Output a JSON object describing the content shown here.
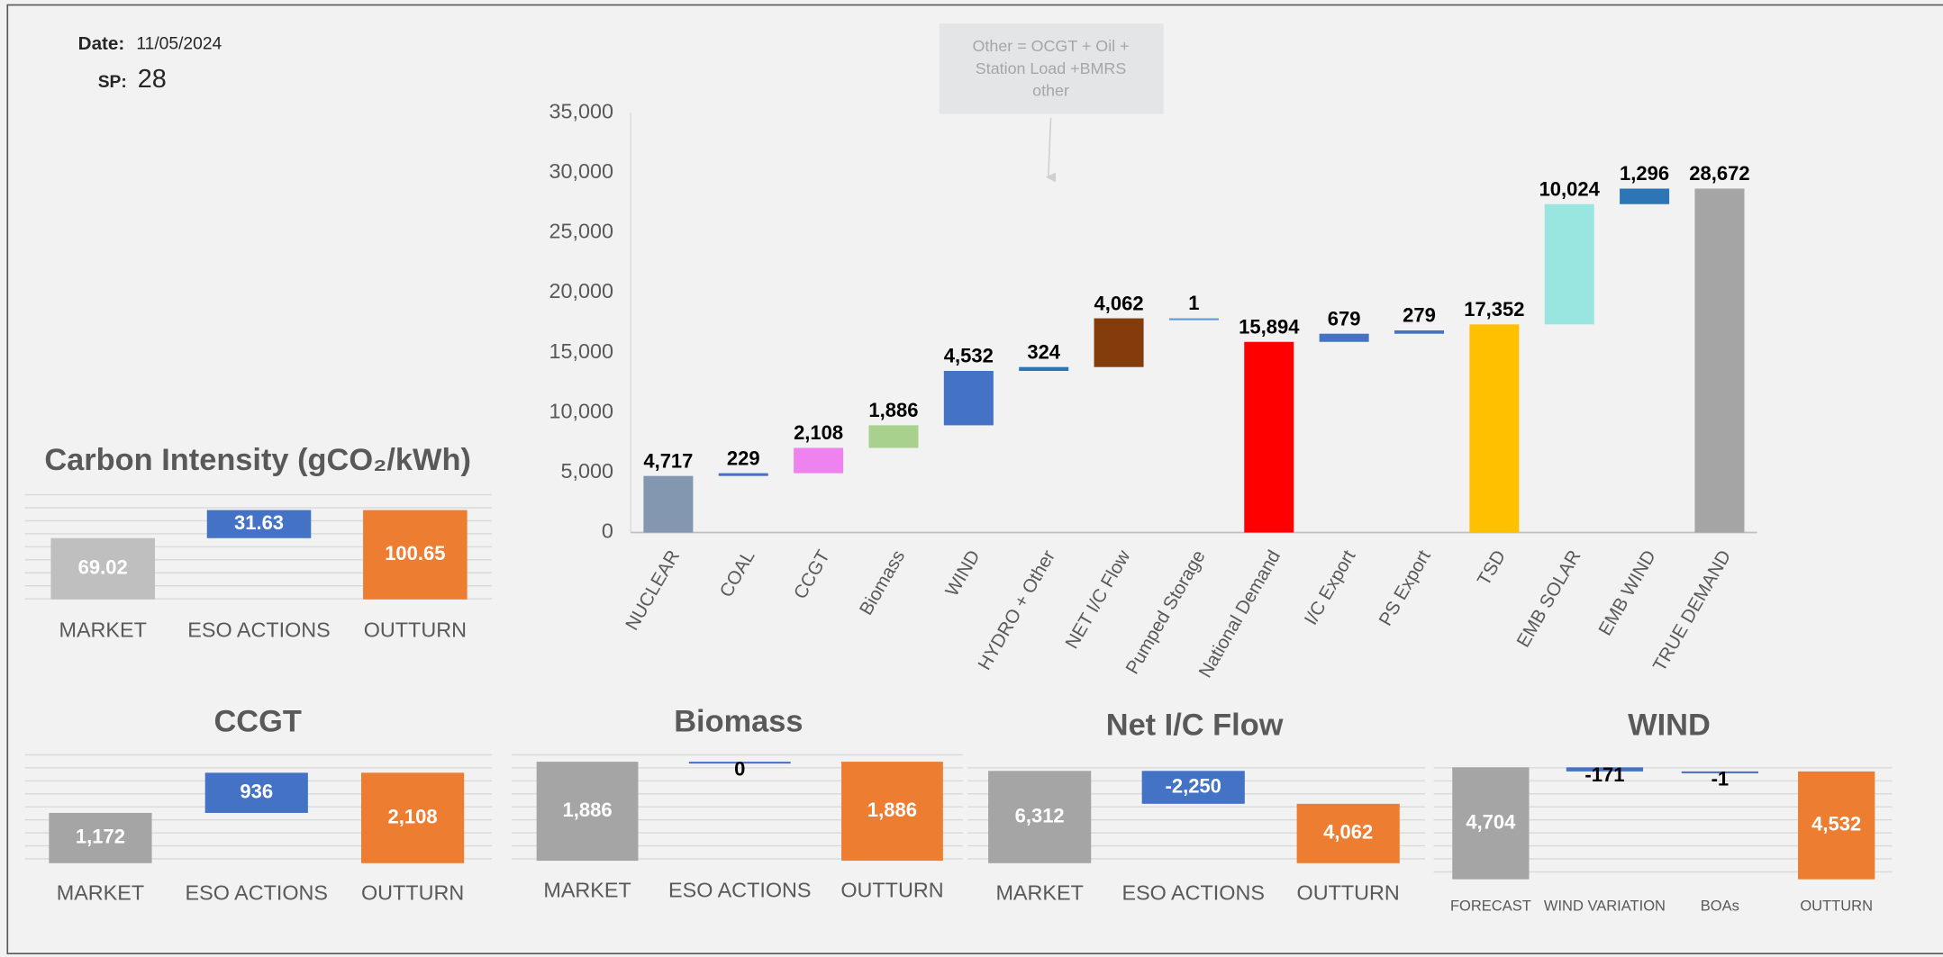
{
  "header": {
    "date_label": "Date:",
    "date": "11/05/2024",
    "sp_label": "SP:",
    "sp": "28"
  },
  "chart_data": [
    {
      "type": "waterfall",
      "annotation": [
        "Other = OCGT + Oil +",
        "Station Load +BMRS",
        "other"
      ],
      "categories": [
        "NUCLEAR",
        "COAL",
        "CCGT",
        "Biomass",
        "WIND",
        "HYDRO + Other",
        "NET I/C Flow",
        "Pumped Storage",
        "National Demand",
        "I/C Export",
        "PS Export",
        "TSD",
        "EMB SOLAR",
        "EMB WIND",
        "TRUE DEMAND"
      ],
      "values": [
        4717,
        229,
        2108,
        1886,
        4532,
        324,
        4062,
        1,
        15894,
        679,
        279,
        17352,
        10024,
        1296,
        28672
      ],
      "value_labels": [
        "4,717",
        "229",
        "2,108",
        "1,886",
        "4,532",
        "324",
        "4,062",
        "1",
        "15,894",
        "679",
        "279",
        "17,352",
        "10,024",
        "1,296",
        "28,672"
      ],
      "totals": [
        false,
        false,
        false,
        false,
        false,
        false,
        false,
        false,
        true,
        false,
        false,
        true,
        false,
        false,
        true
      ],
      "colors": [
        "#8497b0",
        "#4472c4",
        "#ee82ee",
        "#a9d18e",
        "#4472c4",
        "#2e75b6",
        "#843c0c",
        "#5b9bd5",
        "#ff0000",
        "#4472c4",
        "#4472c4",
        "#ffc000",
        "#99e6e0",
        "#2e75b6",
        "#a5a5a5"
      ],
      "ylim": [
        0,
        35000
      ],
      "yticks": [
        0,
        {
          "value": 5000,
          "label": "5,000"
        },
        {
          "value": 10000,
          "label": "10,000"
        },
        {
          "value": 15000,
          "label": "15,000"
        },
        {
          "value": 20000,
          "label": "20,000"
        },
        {
          "value": 25000,
          "label": "25,000"
        },
        {
          "value": 30000,
          "label": "30,000"
        },
        {
          "value": 35000,
          "label": "35,000"
        }
      ],
      "grid": false
    },
    {
      "type": "waterfall",
      "title": "Carbon Intensity (gCO₂/kWh)",
      "categories": [
        "MARKET",
        "ESO ACTIONS",
        "OUTTURN"
      ],
      "values": [
        69.02,
        31.63,
        100.65
      ],
      "totals": [
        false,
        false,
        true
      ],
      "colors": [
        "#bfbfbf",
        "#4472c4",
        "#ed7d31"
      ],
      "ylim": [
        0,
        120
      ]
    },
    {
      "type": "waterfall",
      "title": "CCGT",
      "categories": [
        "MARKET",
        "ESO ACTIONS",
        "OUTTURN"
      ],
      "values": [
        1172,
        936,
        2108
      ],
      "value_labels": [
        "1,172",
        "936",
        "2,108"
      ],
      "totals": [
        false,
        false,
        true
      ],
      "colors": [
        "#a5a5a5",
        "#4472c4",
        "#ed7d31"
      ],
      "ylim": [
        0,
        2800
      ]
    },
    {
      "type": "waterfall",
      "title": "Biomass",
      "categories": [
        "MARKET",
        "ESO ACTIONS",
        "OUTTURN"
      ],
      "values": [
        1886,
        0,
        1886
      ],
      "value_labels": [
        "1,886",
        "0",
        "1,886"
      ],
      "totals": [
        false,
        false,
        true
      ],
      "colors": [
        "#a5a5a5",
        "#4472c4",
        "#ed7d31"
      ],
      "ylim": [
        0,
        2100
      ]
    },
    {
      "type": "waterfall",
      "title": "Net I/C Flow",
      "categories": [
        "MARKET",
        "ESO ACTIONS",
        "OUTTURN"
      ],
      "values": [
        6312,
        -2250,
        4062
      ],
      "value_labels": [
        "6,312",
        "-2,250",
        "4,062"
      ],
      "totals": [
        false,
        false,
        true
      ],
      "colors": [
        "#a5a5a5",
        "#4472c4",
        "#ed7d31"
      ],
      "ylim": [
        0,
        7200
      ]
    },
    {
      "type": "waterfall",
      "title": "WIND",
      "categories": [
        "FORECAST",
        "WIND VARIATION",
        "BOAs",
        "OUTTURN"
      ],
      "values": [
        4704,
        -171,
        -1,
        4532
      ],
      "value_labels": [
        "4,704",
        "-171",
        "-1",
        "4,532"
      ],
      "totals": [
        false,
        false,
        false,
        true
      ],
      "colors": [
        "#a5a5a5",
        "#4472c4",
        "#4472c4",
        "#ed7d31"
      ],
      "ylim": [
        0,
        5100
      ]
    }
  ]
}
